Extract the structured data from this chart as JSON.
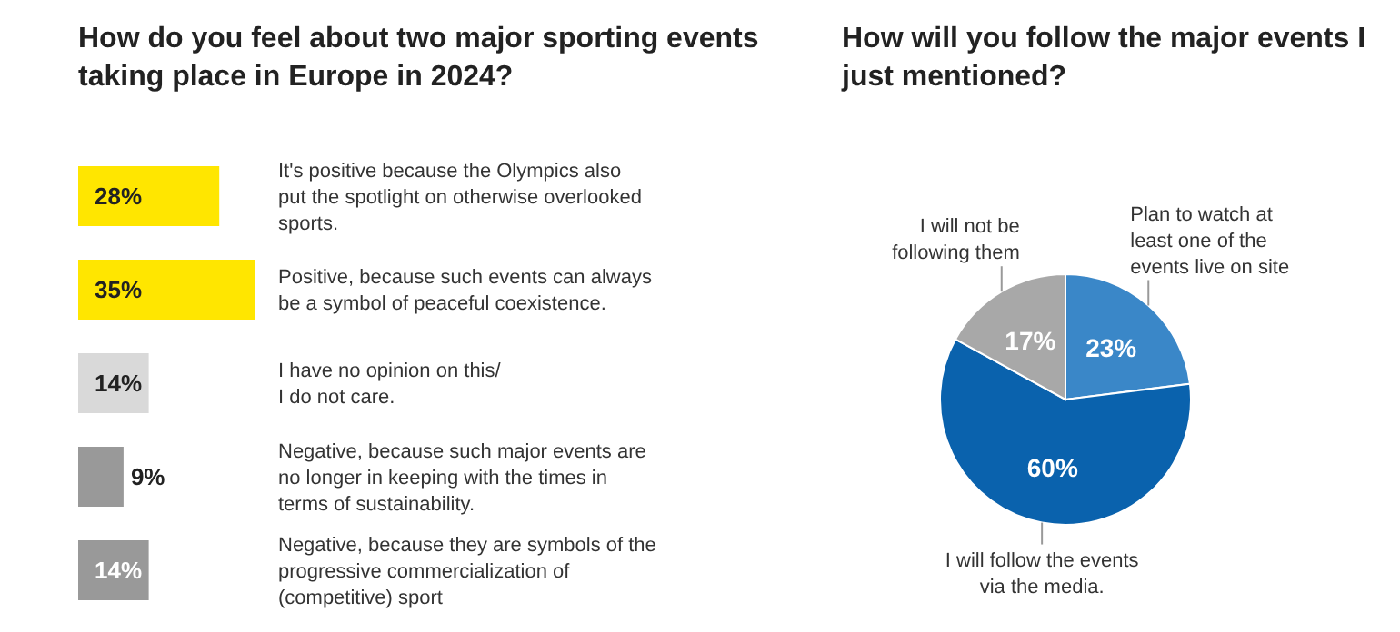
{
  "chart_data": [
    {
      "type": "bar",
      "orientation": "horizontal",
      "title": "How do you feel about two major sporting events taking place in Europe in 2024?",
      "categories": [
        "It's positive because the Olympics also put the spotlight on otherwise overlooked sports.",
        "Positive, because such events can always be a symbol of peaceful coexistence.",
        "I have no opinion on this/ I do not care.",
        "Negative, because such major events are no longer in keeping with the times in terms of sustainability.",
        "Negative, because they are symbols of the progressive commercialization of (competitive) sport"
      ],
      "values": [
        28,
        35,
        14,
        9,
        14
      ],
      "value_labels": [
        "28%",
        "35%",
        "14%",
        "9%",
        "14%"
      ],
      "colors": [
        "#ffe600",
        "#ffe600",
        "#d9d9d9",
        "#999999",
        "#999999"
      ]
    },
    {
      "type": "pie",
      "title": "How will you follow the major events I just mentioned?",
      "categories": [
        "Plan to watch at least one of the events live on site",
        "I will follow the events via the media.",
        "I will not be following them"
      ],
      "values": [
        23,
        60,
        17
      ],
      "value_labels": [
        "23%",
        "60%",
        "17%"
      ],
      "colors": [
        "#3a87c8",
        "#0a62ad",
        "#a8a8a8"
      ]
    }
  ]
}
